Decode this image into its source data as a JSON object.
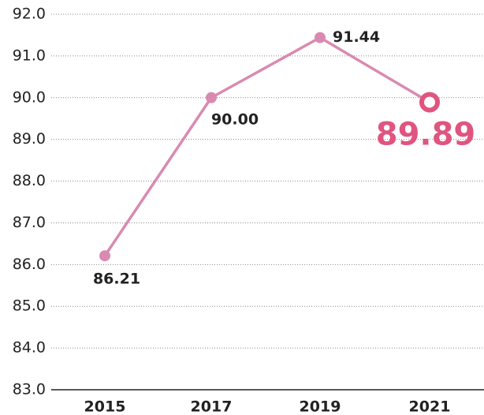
{
  "chart_data": {
    "type": "line",
    "x": [
      "2015",
      "2017",
      "2019",
      "2021"
    ],
    "series": [
      {
        "values": [
          86.21,
          90.0,
          91.44,
          89.89
        ],
        "value_labels": [
          "86.21",
          "90.00",
          "91.44",
          "89.89"
        ],
        "color": "#d98ab0"
      }
    ],
    "highlight_color": "#e0557f",
    "ylim": [
      83,
      92
    ],
    "yticks": [
      {
        "value": 83,
        "label": "83.0"
      },
      {
        "value": 84,
        "label": "84.0"
      },
      {
        "value": 85,
        "label": "85.0"
      },
      {
        "value": 86,
        "label": "86.0"
      },
      {
        "value": 87,
        "label": "87.0"
      },
      {
        "value": 88,
        "label": "88.0"
      },
      {
        "value": 89,
        "label": "89.0"
      },
      {
        "value": 90,
        "label": "90.0"
      },
      {
        "value": 91,
        "label": "91.0"
      },
      {
        "value": 92,
        "label": "92.0"
      }
    ],
    "grid": true
  }
}
